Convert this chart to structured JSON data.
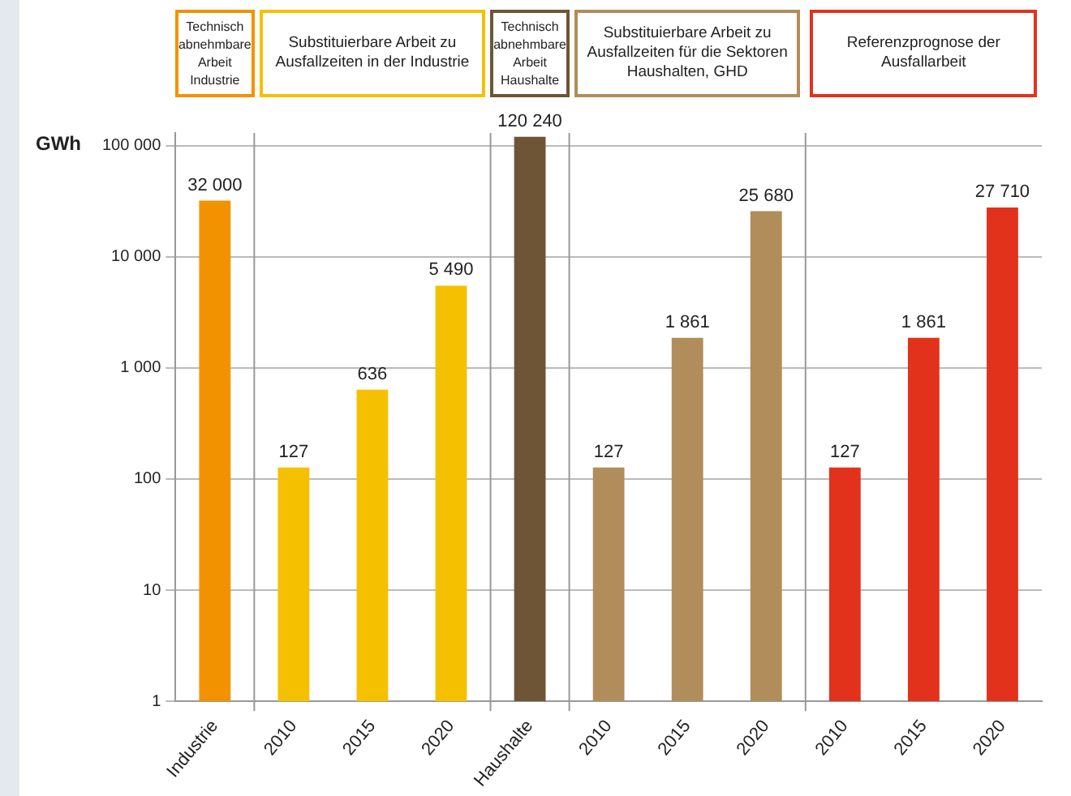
{
  "chart_data": {
    "type": "bar",
    "ylabel": "GWh",
    "log": "y",
    "grid": "y",
    "legend": false,
    "categories": [
      "Industrie",
      "2010",
      "2015",
      "2020",
      "Haushalte",
      "2010",
      "2015",
      "2020",
      "2010",
      "2015",
      "2020"
    ],
    "values": [
      32000,
      127,
      636,
      5490,
      120240,
      127,
      1861,
      25680,
      127,
      1861,
      27710
    ],
    "colors": [
      "#f39200",
      "#f5c000",
      "#f5c000",
      "#f5c000",
      "#6e5535",
      "#b08d5a",
      "#b08d5a",
      "#b08d5a",
      "#e3321c",
      "#e3321c",
      "#e3321c"
    ],
    "value_labels": [
      "32 000",
      "127",
      "636",
      "5 490",
      "120 240",
      "127",
      "1 861",
      "25 680",
      "127",
      "1 861",
      "27 710"
    ],
    "ylim": [
      1,
      130000
    ],
    "yticks": [
      1,
      10,
      100,
      {
        "value": 1000,
        "label": "1 000"
      },
      {
        "value": 10000,
        "label": "10 000"
      },
      {
        "value": 100000,
        "label": "100 000"
      }
    ],
    "annotations": [
      "Technisch abnehmbare Arbeit Industrie",
      "Substituierbare Arbeit zu Ausfallzeiten in der Industrie",
      "Technisch abnehmbare Arbeit Haushalte",
      "Substituierbare Arbeit zu Ausfallzeiten für die Sektoren Haushalten, GHD",
      "Referenzprognose der Ausfallarbeit"
    ]
  }
}
